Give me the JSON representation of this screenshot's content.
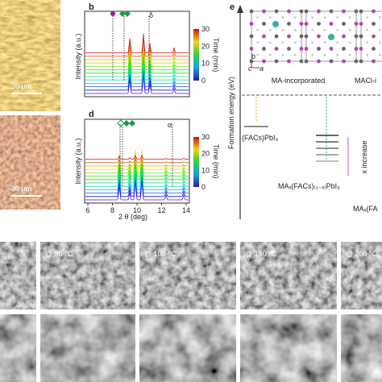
{
  "left_images": {
    "scale_bars": [
      "30 μm",
      "30 μm"
    ]
  },
  "panel_b": {
    "label": "b",
    "y_axis_label": "Intensity (a.u.)",
    "colorbar_label": "Time (min)",
    "colorbar_ticks": [
      "30",
      "20",
      "10",
      "0"
    ],
    "phase": "δ"
  },
  "panel_d": {
    "label": "d",
    "y_axis_label": "Intensity (a.u.)",
    "colorbar_label": "Time (min)",
    "colorbar_ticks": [
      "30",
      "20",
      "10",
      "0"
    ],
    "x_ticks": [
      "6",
      "8",
      "10",
      "12",
      "14"
    ],
    "x_axis_label": "2 θ (deg)",
    "phase": "α"
  },
  "panel_e": {
    "label": "e",
    "y_axis_label": "Formation energy (eV)",
    "crystal_axes": [
      "b",
      "c",
      "a"
    ],
    "structures": [
      "MA-incorporated",
      "MACl-i"
    ],
    "levels": [
      "(FACs)PbI₃",
      "MAₓ(FACs)₍₁₋ₓ₎PbI₃",
      "MAₓ(FA"
    ],
    "trend": "x increase"
  },
  "sem": {
    "temperatures": [
      "@ 50 °C",
      "@ 100 °C",
      "@ 150 °C",
      "@ 200 °C"
    ]
  }
}
